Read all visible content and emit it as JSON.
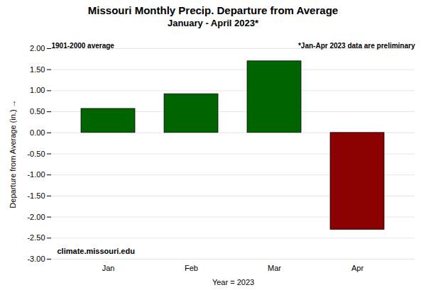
{
  "chart_data": {
    "type": "bar",
    "title": "Missouri Monthly Precip. Departure from Average",
    "subtitle": "January - April 2023*",
    "categories": [
      "Jan",
      "Feb",
      "Mar",
      "Apr"
    ],
    "values": [
      0.57,
      0.92,
      1.7,
      -2.3
    ],
    "colors": [
      "#006400",
      "#006400",
      "#006400",
      "#8B0000"
    ],
    "xlabel": "Year = 2023",
    "ylabel": "Departure from Average (in.)",
    "ylim": [
      -3.0,
      2.0
    ],
    "yticks": [
      {
        "value": -3.0,
        "label": "-3.00"
      },
      {
        "value": -2.5,
        "label": "-2.50"
      },
      {
        "value": -2.0,
        "label": "-2.00"
      },
      {
        "value": -1.5,
        "label": "-1.50"
      },
      {
        "value": -1.0,
        "label": "-1.00"
      },
      {
        "value": -0.5,
        "label": "-0.50"
      },
      {
        "value": 0.0,
        "label": "0.00"
      },
      {
        "value": 0.5,
        "label": "0.50"
      },
      {
        "value": 1.0,
        "label": "1.00"
      },
      {
        "value": 1.5,
        "label": "1.50"
      },
      {
        "value": 2.0,
        "label": "2.00"
      }
    ],
    "grid": true,
    "annotations": [
      "1901-2000 average",
      "*Jan-Apr 2023 data are preliminary",
      "climate.missouri.edu"
    ]
  }
}
